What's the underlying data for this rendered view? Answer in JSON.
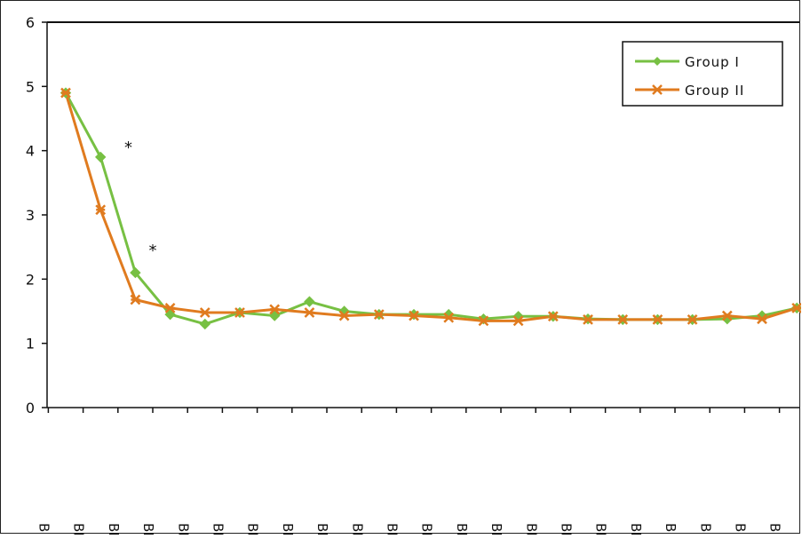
{
  "chart_data": {
    "type": "line",
    "title": "",
    "xlabel": "",
    "ylabel": "",
    "ylim": [
      0,
      6
    ],
    "yticks": [
      "0",
      "1",
      "2",
      "3",
      "4",
      "5",
      "6"
    ],
    "grid": false,
    "legend": "top-right",
    "categories": [
      "B",
      "BM",
      "BM",
      "BN",
      "BN",
      "BN",
      "BN",
      "BN",
      "BN",
      "BN",
      "BN",
      "BN",
      "BN",
      "BN",
      "BN",
      "BI",
      "BI",
      "BI",
      "B",
      "B",
      "B",
      "B",
      "B"
    ],
    "series": [
      {
        "name": "Group I",
        "color": "#77c043",
        "marker": "diamond",
        "values": [
          4.9,
          3.9,
          2.1,
          1.45,
          1.3,
          1.48,
          1.43,
          1.65,
          1.5,
          1.45,
          1.45,
          1.45,
          1.38,
          1.42,
          1.42,
          1.38,
          1.37,
          1.37,
          1.37,
          1.38,
          1.43,
          1.55,
          1.57
        ]
      },
      {
        "name": "Group II",
        "color": "#e07b1f",
        "marker": "cross",
        "values": [
          4.9,
          3.08,
          1.68,
          1.55,
          1.48,
          1.48,
          1.53,
          1.48,
          1.43,
          1.45,
          1.43,
          1.4,
          1.35,
          1.35,
          1.42,
          1.37,
          1.37,
          1.37,
          1.37,
          1.43,
          1.38,
          1.55,
          1.57
        ]
      }
    ],
    "annotations": [
      {
        "text": "*",
        "category_index": 1.8,
        "value": 4.05
      },
      {
        "text": "*",
        "category_index": 2.5,
        "value": 2.45
      }
    ]
  }
}
